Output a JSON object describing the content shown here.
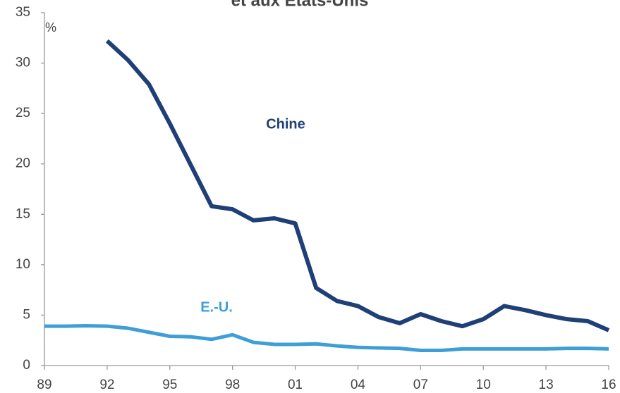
{
  "chart_data": {
    "type": "line",
    "title": "et aux Etats-Unis",
    "x": [
      1989,
      1990,
      1991,
      1992,
      1993,
      1994,
      1995,
      1996,
      1997,
      1998,
      1999,
      2000,
      2001,
      2002,
      2003,
      2004,
      2005,
      2006,
      2007,
      2008,
      2009,
      2010,
      2011,
      2012,
      2013,
      2014,
      2015,
      2016
    ],
    "series": [
      {
        "name": "Chine",
        "color": "#1f3f77",
        "values": [
          null,
          null,
          null,
          32.2,
          30.3,
          27.9,
          24.0,
          19.9,
          15.8,
          15.5,
          14.4,
          14.6,
          14.1,
          7.7,
          6.4,
          5.9,
          4.8,
          4.2,
          5.1,
          4.4,
          3.9,
          4.6,
          5.9,
          5.5,
          5.0,
          4.6,
          4.4,
          3.5
        ]
      },
      {
        "name": "E.-U.",
        "color": "#3d9fd6",
        "values": [
          3.9,
          3.9,
          3.95,
          3.9,
          3.7,
          3.3,
          2.9,
          2.85,
          2.6,
          3.05,
          2.3,
          2.1,
          2.1,
          2.15,
          1.95,
          1.8,
          1.75,
          1.7,
          1.5,
          1.5,
          1.65,
          1.65,
          1.65,
          1.65,
          1.65,
          1.7,
          1.7,
          1.65
        ]
      }
    ],
    "y_unit_label": "%",
    "xlim": [
      1989,
      2016
    ],
    "xticks": [
      {
        "value": 1989,
        "label": "89"
      },
      {
        "value": 1992,
        "label": "92"
      },
      {
        "value": 1995,
        "label": "95"
      },
      {
        "value": 1998,
        "label": "98"
      },
      {
        "value": 2001,
        "label": "01"
      },
      {
        "value": 2004,
        "label": "04"
      },
      {
        "value": 2007,
        "label": "07"
      },
      {
        "value": 2010,
        "label": "10"
      },
      {
        "value": 2013,
        "label": "13"
      },
      {
        "value": 2016,
        "label": "16"
      }
    ],
    "ylim": [
      0,
      35
    ],
    "yticks": [
      0,
      5,
      10,
      15,
      20,
      25,
      30,
      35
    ],
    "grid": false
  }
}
